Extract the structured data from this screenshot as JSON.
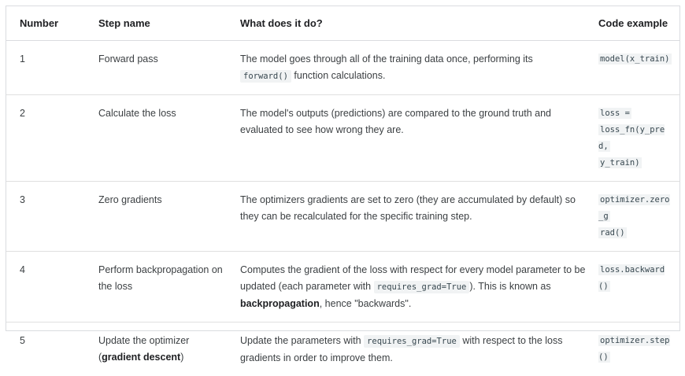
{
  "headers": {
    "number": "Number",
    "step": "Step name",
    "what": "What does it do?",
    "code": "Code example"
  },
  "rows": [
    {
      "number": "1",
      "step_plain": "Forward pass",
      "what_a": "The model goes through all of the training data once, performing its",
      "what_code": "forward()",
      "what_b": "function calculations.",
      "code": "model(x_train)"
    },
    {
      "number": "2",
      "step_plain": "Calculate the loss",
      "what": "The model's outputs (predictions) are compared to the ground truth and evaluated to see how wrong they are.",
      "code_line1": "loss =",
      "code_line2": "loss_fn(y_pred,",
      "code_line3": "y_train)"
    },
    {
      "number": "3",
      "step_plain": "Zero gradients",
      "what": "The optimizers gradients are set to zero (they are accumulated by default) so they can be recalculated for the specific training step.",
      "code_line1": "optimizer.zero_g",
      "code_line2": "rad()"
    },
    {
      "number": "4",
      "step_plain": "Perform backpropagation on the loss",
      "what_a": "Computes the gradient of the loss with respect for every model parameter to be updated (each parameter with",
      "what_code": "requires_grad=True",
      "what_b": "). This is known as",
      "what_bold": "backpropagation",
      "what_c": ", hence \"backwards\".",
      "code": "loss.backward()"
    },
    {
      "number": "5",
      "step_a": "Update the optimizer (",
      "step_bold": "gradient descent",
      "step_b": ")",
      "what_a": "Update the parameters with",
      "what_code": "requires_grad=True",
      "what_b": "with respect to the loss gradients in order to improve them.",
      "code": "optimizer.step()"
    }
  ]
}
